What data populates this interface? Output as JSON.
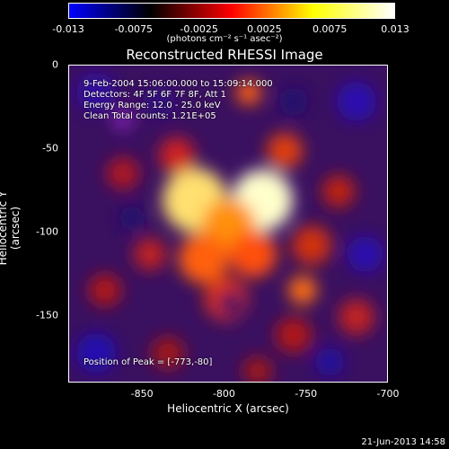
{
  "colorbar": {
    "colors": [
      "#0000ff",
      "#000000",
      "#ff0000",
      "#ffff00",
      "#ffffff"
    ],
    "ticks": [
      "-0.013",
      "-0.0075",
      "-0.0025",
      "0.0025",
      "0.0075",
      "0.013"
    ],
    "unit_label": "(photons cm⁻² s⁻¹ asec⁻²)"
  },
  "chart_data": {
    "type": "heatmap",
    "title": "Reconstructed RHESSI Image",
    "xlabel": "Heliocentric X (arcsec)",
    "ylabel": "Heliocentric Y (arcsec)",
    "xlim": [
      -895,
      -700
    ],
    "ylim": [
      -190,
      0
    ],
    "xticks": [
      "-850",
      "-800",
      "-750",
      "-700"
    ],
    "yticks": [
      "0",
      "-50",
      "-100",
      "-150"
    ],
    "xtick_values": [
      -850,
      -800,
      -750,
      -700
    ],
    "ytick_values": [
      0,
      -50,
      -100,
      -150
    ],
    "peak": [
      -773,
      -80
    ],
    "annotations": {
      "time_range": "9-Feb-2004 15:06:00.000 to 15:09:14.000",
      "detectors": "Detectors: 4F 5F 6F 7F 8F, Att 1",
      "energy": "Energy Range: 12.0 - 25.0 keV",
      "clean": "Clean    Total counts: 1.21E+05",
      "peak_label": "Position of Peak = [-773,-80]"
    }
  },
  "timestamp": "21-Jun-2013 14:58"
}
